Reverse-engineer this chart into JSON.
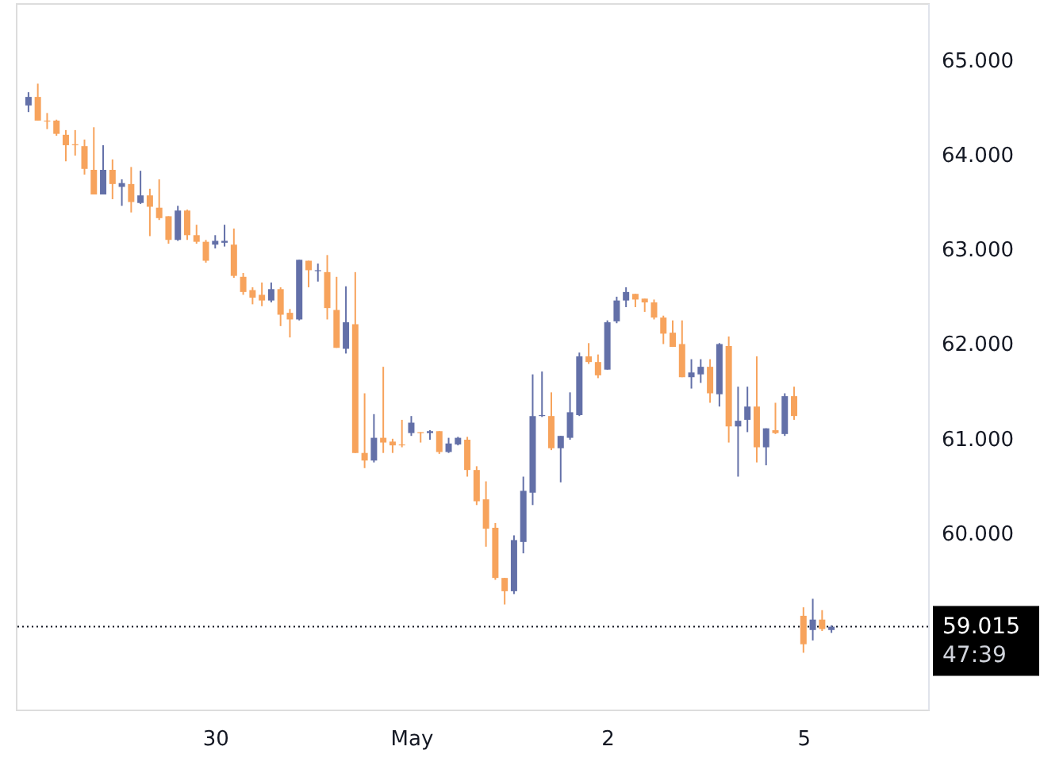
{
  "chart_data": {
    "type": "candlestick",
    "categories": [
      null,
      null,
      null,
      null,
      null,
      null,
      null,
      null,
      null,
      null,
      null,
      null,
      null,
      null,
      null,
      null,
      null,
      null,
      null,
      null,
      "30",
      null,
      null,
      null,
      null,
      null,
      null,
      null,
      null,
      null,
      null,
      null,
      null,
      null,
      null,
      null,
      null,
      null,
      null,
      null,
      null,
      "May",
      null,
      null,
      null,
      null,
      null,
      null,
      null,
      null,
      null,
      null,
      null,
      null,
      null,
      null,
      null,
      null,
      null,
      null,
      null,
      null,
      "2",
      null,
      null,
      null,
      null,
      null,
      null,
      null,
      null,
      null,
      null,
      null,
      null,
      null,
      null,
      null,
      null,
      null,
      null,
      null,
      null,
      "5",
      null,
      null,
      null
    ],
    "ohlc": [
      [
        64.52,
        64.66,
        64.45,
        64.61
      ],
      [
        64.61,
        64.75,
        64.36,
        64.36
      ],
      [
        64.36,
        64.44,
        64.27,
        64.35
      ],
      [
        64.36,
        64.37,
        64.2,
        64.22
      ],
      [
        64.21,
        64.26,
        63.93,
        64.1
      ],
      [
        64.11,
        64.26,
        63.99,
        64.1
      ],
      [
        64.09,
        64.16,
        63.79,
        63.85
      ],
      [
        63.84,
        64.29,
        63.58,
        63.58
      ],
      [
        63.58,
        64.1,
        63.58,
        63.84
      ],
      [
        63.84,
        63.95,
        63.53,
        63.69
      ],
      [
        63.66,
        63.74,
        63.46,
        63.7
      ],
      [
        63.69,
        63.87,
        63.39,
        63.5
      ],
      [
        63.49,
        63.83,
        63.48,
        63.57
      ],
      [
        63.57,
        63.64,
        63.14,
        63.45
      ],
      [
        63.44,
        63.74,
        63.31,
        63.33
      ],
      [
        63.35,
        63.35,
        63.06,
        63.1
      ],
      [
        63.1,
        63.46,
        63.09,
        63.41
      ],
      [
        63.41,
        63.42,
        63.1,
        63.15
      ],
      [
        63.15,
        63.26,
        63.06,
        63.08
      ],
      [
        63.08,
        63.1,
        62.86,
        62.88
      ],
      [
        63.05,
        63.15,
        63.01,
        63.09
      ],
      [
        63.07,
        63.26,
        63.03,
        63.09
      ],
      [
        63.05,
        63.22,
        62.7,
        62.72
      ],
      [
        62.71,
        62.75,
        62.52,
        62.55
      ],
      [
        62.57,
        62.6,
        62.42,
        62.49
      ],
      [
        62.52,
        62.65,
        62.4,
        62.46
      ],
      [
        62.46,
        62.65,
        62.44,
        62.58
      ],
      [
        62.58,
        62.6,
        62.19,
        62.31
      ],
      [
        62.33,
        62.37,
        62.07,
        62.26
      ],
      [
        62.26,
        62.89,
        62.25,
        62.89
      ],
      [
        62.88,
        62.88,
        62.6,
        62.78
      ],
      [
        62.77,
        62.85,
        62.66,
        62.78
      ],
      [
        62.76,
        62.94,
        62.26,
        62.38
      ],
      [
        62.36,
        62.71,
        61.96,
        61.96
      ],
      [
        61.95,
        62.61,
        61.9,
        62.23
      ],
      [
        62.21,
        62.76,
        60.85,
        60.85
      ],
      [
        60.85,
        61.48,
        60.69,
        60.77
      ],
      [
        60.77,
        61.26,
        60.75,
        61.01
      ],
      [
        61.01,
        61.76,
        60.85,
        60.96
      ],
      [
        60.97,
        61.0,
        60.85,
        60.93
      ],
      [
        60.94,
        61.2,
        60.91,
        60.93
      ],
      [
        61.06,
        61.24,
        61.03,
        61.17
      ],
      [
        61.07,
        61.07,
        60.96,
        61.06
      ],
      [
        61.06,
        61.09,
        60.99,
        61.08
      ],
      [
        61.08,
        61.08,
        60.84,
        60.86
      ],
      [
        60.86,
        61.01,
        60.85,
        60.95
      ],
      [
        60.94,
        61.02,
        60.93,
        61.01
      ],
      [
        60.99,
        61.02,
        60.6,
        60.67
      ],
      [
        60.67,
        60.71,
        60.3,
        60.34
      ],
      [
        60.36,
        60.55,
        59.86,
        60.05
      ],
      [
        60.06,
        60.11,
        59.51,
        59.53
      ],
      [
        59.53,
        59.53,
        59.25,
        59.39
      ],
      [
        59.39,
        59.98,
        59.36,
        59.93
      ],
      [
        59.91,
        60.6,
        59.79,
        60.45
      ],
      [
        60.43,
        61.68,
        60.3,
        61.24
      ],
      [
        61.24,
        61.71,
        61.23,
        61.25
      ],
      [
        61.24,
        61.49,
        60.88,
        60.9
      ],
      [
        60.9,
        61.03,
        60.54,
        61.03
      ],
      [
        61.01,
        61.49,
        60.99,
        61.28
      ],
      [
        61.25,
        61.91,
        61.24,
        61.87
      ],
      [
        61.87,
        62.01,
        61.79,
        61.81
      ],
      [
        61.81,
        61.89,
        61.64,
        61.67
      ],
      [
        61.73,
        62.25,
        61.73,
        62.23
      ],
      [
        62.24,
        62.5,
        62.22,
        62.46
      ],
      [
        62.46,
        62.6,
        62.39,
        62.55
      ],
      [
        62.53,
        62.53,
        62.39,
        62.47
      ],
      [
        62.48,
        62.48,
        62.34,
        62.44
      ],
      [
        62.44,
        62.47,
        62.26,
        62.28
      ],
      [
        62.28,
        62.3,
        62.0,
        62.11
      ],
      [
        62.12,
        62.25,
        61.97,
        61.97
      ],
      [
        62.0,
        62.25,
        61.65,
        61.65
      ],
      [
        61.65,
        61.84,
        61.53,
        61.7
      ],
      [
        61.68,
        61.84,
        61.59,
        61.76
      ],
      [
        61.76,
        61.84,
        61.38,
        61.48
      ],
      [
        61.47,
        62.01,
        61.34,
        62.0
      ],
      [
        61.98,
        62.08,
        60.96,
        61.13
      ],
      [
        61.13,
        61.55,
        60.6,
        61.19
      ],
      [
        61.2,
        61.55,
        61.07,
        61.34
      ],
      [
        61.34,
        61.87,
        60.75,
        60.91
      ],
      [
        60.91,
        61.11,
        60.72,
        61.11
      ],
      [
        61.09,
        61.38,
        61.05,
        61.06
      ],
      [
        61.05,
        61.48,
        61.03,
        61.45
      ],
      [
        61.45,
        61.55,
        61.2,
        61.24
      ],
      [
        59.13,
        59.22,
        58.74,
        58.83
      ],
      [
        58.98,
        59.31,
        58.87,
        59.09
      ],
      [
        59.09,
        59.19,
        58.97,
        58.99
      ],
      [
        58.98,
        59.03,
        58.95,
        59.015
      ]
    ],
    "colors": [
      "#6370a8",
      "#f7a35c",
      "#f7a35c",
      "#f7a35c",
      "#f7a35c",
      "#f7a35c",
      "#f7a35c",
      "#f7a35c",
      "#6370a8",
      "#f7a35c",
      "#6370a8",
      "#f7a35c",
      "#6370a8",
      "#f7a35c",
      "#f7a35c",
      "#f7a35c",
      "#6370a8",
      "#f7a35c",
      "#f7a35c",
      "#f7a35c",
      "#6370a8",
      "#6370a8",
      "#f7a35c",
      "#f7a35c",
      "#f7a35c",
      "#f7a35c",
      "#6370a8",
      "#f7a35c",
      "#f7a35c",
      "#6370a8",
      "#f7a35c",
      "#6370a8",
      "#f7a35c",
      "#f7a35c",
      "#6370a8",
      "#f7a35c",
      "#f7a35c",
      "#6370a8",
      "#f7a35c",
      "#f7a35c",
      "#f7a35c",
      "#6370a8",
      "#f7a35c",
      "#6370a8",
      "#f7a35c",
      "#6370a8",
      "#6370a8",
      "#f7a35c",
      "#f7a35c",
      "#f7a35c",
      "#f7a35c",
      "#f7a35c",
      "#6370a8",
      "#6370a8",
      "#6370a8",
      "#6370a8",
      "#f7a35c",
      "#6370a8",
      "#6370a8",
      "#6370a8",
      "#f7a35c",
      "#f7a35c",
      "#6370a8",
      "#6370a8",
      "#6370a8",
      "#f7a35c",
      "#f7a35c",
      "#f7a35c",
      "#f7a35c",
      "#f7a35c",
      "#f7a35c",
      "#6370a8",
      "#6370a8",
      "#f7a35c",
      "#6370a8",
      "#f7a35c",
      "#6370a8",
      "#6370a8",
      "#f7a35c",
      "#6370a8",
      "#f7a35c",
      "#6370a8",
      "#f7a35c",
      "#f7a35c",
      "#6370a8",
      "#f7a35c",
      "#6370a8"
    ],
    "ylim": [
      58.14,
      65.6
    ],
    "yticks": [
      {
        "value": 60,
        "label": "60.000"
      },
      {
        "value": 61,
        "label": "61.000"
      },
      {
        "value": 62,
        "label": "62.000"
      },
      {
        "value": 63,
        "label": "63.000"
      },
      {
        "value": 64,
        "label": "64.000"
      },
      {
        "value": 65,
        "label": "65.000"
      }
    ],
    "ref_lines": [
      {
        "axis": "y",
        "value": 59.015,
        "label": "59.015",
        "color": "#131722",
        "line_style": "dotted"
      }
    ],
    "annotations": [
      "47:39"
    ],
    "grid": false
  }
}
